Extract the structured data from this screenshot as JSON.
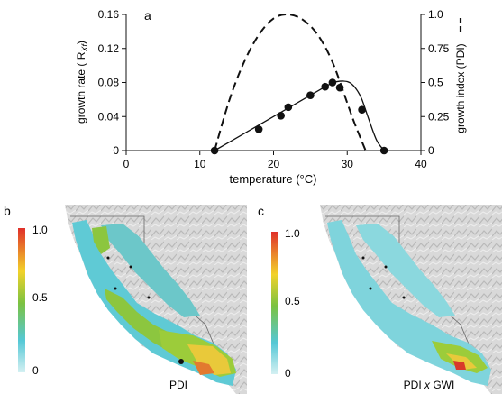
{
  "chart_data": [
    {
      "type": "line",
      "panel_label": "a",
      "xlabel": "temperature (°C)",
      "ylabel_left": "growth rate ( R",
      "ylabel_left_sub": "Xf",
      "ylabel_left_end": ")",
      "ylabel_right": "growth index (PDI)",
      "xlim": [
        0,
        40
      ],
      "ylim_left": [
        0,
        0.16
      ],
      "ylim_right": [
        0,
        1.0
      ],
      "x_ticks": [
        0,
        10,
        20,
        30,
        40
      ],
      "y_left_ticks": [
        "0",
        "0.04",
        "0.08",
        "0.12",
        "0.16"
      ],
      "y_right_ticks": [
        "0",
        "0.25",
        "0.5",
        "0.75",
        "1.0"
      ],
      "series": [
        {
          "style": "points",
          "axis": "left",
          "x": [
            12,
            18,
            21,
            22,
            25,
            27,
            28,
            29,
            32,
            35
          ],
          "y": [
            0.0,
            0.025,
            0.041,
            0.051,
            0.065,
            0.075,
            0.08,
            0.074,
            0.048,
            0.0
          ]
        },
        {
          "style": "solid-line",
          "axis": "left",
          "x": [
            12,
            27,
            28,
            29,
            30,
            30.7,
            31.4,
            32,
            33,
            34,
            35
          ],
          "y": [
            0.0,
            0.075,
            0.0795,
            0.0815,
            0.081,
            0.0775,
            0.07,
            0.06,
            0.035,
            0.012,
            0.0
          ]
        },
        {
          "style": "dashed-line",
          "axis": "right",
          "x": [
            12,
            14,
            16,
            18,
            20,
            22,
            24,
            26,
            28,
            30,
            31,
            32.5
          ],
          "y": [
            0.0,
            0.37,
            0.65,
            0.85,
            0.97,
            1.0,
            0.96,
            0.85,
            0.65,
            0.35,
            0.2,
            0.0
          ]
        }
      ]
    },
    {
      "type": "heatmap",
      "panel_label": "b",
      "caption": "PDI",
      "colorbar_ticks": [
        "1.0",
        "0.5",
        "0"
      ]
    },
    {
      "type": "heatmap",
      "panel_label": "c",
      "caption_prefix": "PDI ",
      "caption_italic": "x",
      "caption_suffix": " GWI",
      "colorbar_ticks": [
        "1.0",
        "0.5",
        "0"
      ]
    }
  ],
  "colors": {
    "axis": "#111111",
    "colorbar_top": "#e0302a",
    "colorbar_mid_high": "#f2d22a",
    "colorbar_mid": "#7bc241",
    "colorbar_low": "#55c8d6",
    "colorbar_bottom": "#d4f0f2",
    "terrain": "#d8d8d8",
    "ocean": "#ffffff",
    "valley": "#5fcad5"
  }
}
